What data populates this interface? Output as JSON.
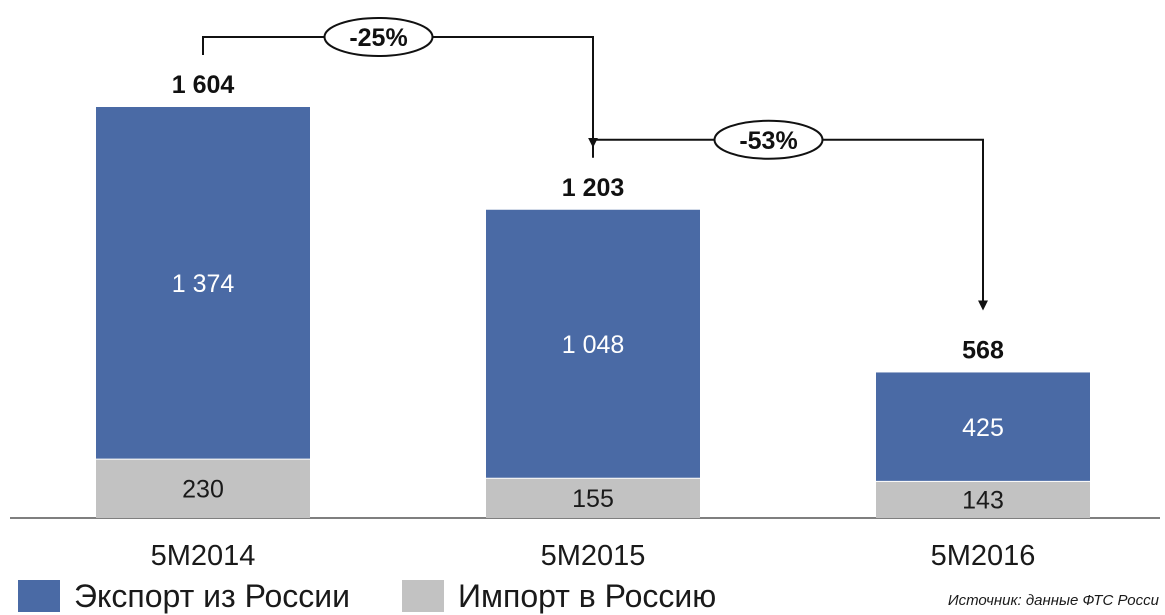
{
  "chart_data": {
    "type": "bar",
    "stacked": true,
    "categories": [
      "5M2014",
      "5M2015",
      "5M2016"
    ],
    "series": [
      {
        "name": "Импорт в Россию",
        "values": [
          230,
          155,
          143
        ],
        "color": "#c2c2c2",
        "labels": [
          "230",
          "155",
          "143"
        ]
      },
      {
        "name": "Экспорт из России",
        "values": [
          1374,
          1048,
          425
        ],
        "color": "#4a6aa5",
        "labels": [
          "1 374",
          "1 048",
          "425"
        ]
      }
    ],
    "totals": [
      1604,
      1203,
      568
    ],
    "total_labels": [
      "1 604",
      "1 203",
      "568"
    ],
    "changes": [
      {
        "from": "5M2014",
        "to": "5M2015",
        "label": "-25%"
      },
      {
        "from": "5M2015",
        "to": "5M2016",
        "label": "-53%"
      }
    ],
    "title": "",
    "xlabel": "",
    "ylabel": "",
    "grid": false,
    "legend_position": "bottom-left"
  },
  "source": "Источник: данные ФТС Росси"
}
